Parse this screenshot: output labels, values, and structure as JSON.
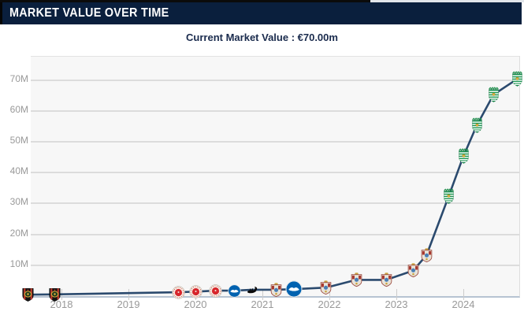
{
  "header": {
    "title": "MARKET VALUE OVER TIME"
  },
  "subtitle": {
    "text": "Current Market Value : €70.00m"
  },
  "chart_data": {
    "type": "line",
    "title": "Market value over time",
    "currency": "€",
    "unit": "m",
    "x_tick_labels": [
      "2018",
      "2019",
      "2020",
      "2021",
      "2022",
      "2023",
      "2024"
    ],
    "y_tick_labels": [
      "10M",
      "20M",
      "30M",
      "40M",
      "50M",
      "60M",
      "70M"
    ],
    "ylim": [
      0,
      77
    ],
    "xlim_years": [
      2017.45,
      2024.85
    ],
    "grid": true,
    "legend_position": "none",
    "line_color": "#2b4a6e",
    "marker_style": "club-crest",
    "points": [
      {
        "date": 2017.5,
        "value_m": 0.2,
        "club": "IF Brommapojkarna",
        "icon": "brommapojkarna-crest-icon"
      },
      {
        "date": 2017.9,
        "value_m": 0.3,
        "club": "IF Brommapojkarna",
        "icon": "brommapojkarna-crest-icon"
      },
      {
        "date": 2019.75,
        "value_m": 1.0,
        "club": "FC St. Pauli",
        "icon": "st-pauli-crest-icon"
      },
      {
        "date": 2020.0,
        "value_m": 1.2,
        "club": "FC St. Pauli",
        "icon": "st-pauli-crest-icon"
      },
      {
        "date": 2020.3,
        "value_m": 1.5,
        "club": "FC St. Pauli",
        "icon": "st-pauli-crest-icon"
      },
      {
        "date": 2020.58,
        "value_m": 1.5,
        "club": "Brighton & Hove Albion",
        "icon": "brighton-crest-icon"
      },
      {
        "date": 2020.85,
        "value_m": 1.8,
        "club": "Swansea City",
        "icon": "swansea-crest-icon"
      },
      {
        "date": 2021.2,
        "value_m": 1.8,
        "club": "Coventry City",
        "icon": "coventry-crest-icon"
      },
      {
        "date": 2021.47,
        "value_m": 2.0,
        "club": "Brighton & Hove Albion",
        "icon": "brighton-crest-icon"
      },
      {
        "date": 2021.95,
        "value_m": 2.5,
        "club": "Coventry City",
        "icon": "coventry-crest-icon"
      },
      {
        "date": 2022.4,
        "value_m": 5.0,
        "club": "Coventry City",
        "icon": "coventry-crest-icon"
      },
      {
        "date": 2022.85,
        "value_m": 5.0,
        "club": "Coventry City",
        "icon": "coventry-crest-icon"
      },
      {
        "date": 2023.25,
        "value_m": 8.0,
        "club": "Coventry City",
        "icon": "coventry-crest-icon"
      },
      {
        "date": 2023.45,
        "value_m": 13.0,
        "club": "Coventry City",
        "icon": "coventry-crest-icon"
      },
      {
        "date": 2023.78,
        "value_m": 32.0,
        "club": "Sporting CP",
        "icon": "sporting-cp-crest-icon"
      },
      {
        "date": 2024.0,
        "value_m": 45.0,
        "club": "Sporting CP",
        "icon": "sporting-cp-crest-icon"
      },
      {
        "date": 2024.2,
        "value_m": 55.0,
        "club": "Sporting CP",
        "icon": "sporting-cp-crest-icon"
      },
      {
        "date": 2024.45,
        "value_m": 65.0,
        "club": "Sporting CP",
        "icon": "sporting-cp-crest-icon"
      },
      {
        "date": 2024.8,
        "value_m": 70.0,
        "club": "Sporting CP",
        "icon": "sporting-cp-crest-icon"
      }
    ]
  },
  "colors": {
    "header_background": "#0a1f3d",
    "header_text": "#ffffff",
    "subtitle_text": "#1a2b4d",
    "plot_background": "#f7f7f7",
    "gridline": "#dcdcdc",
    "axis_label": "#999999",
    "line": "#2b4a6e"
  }
}
